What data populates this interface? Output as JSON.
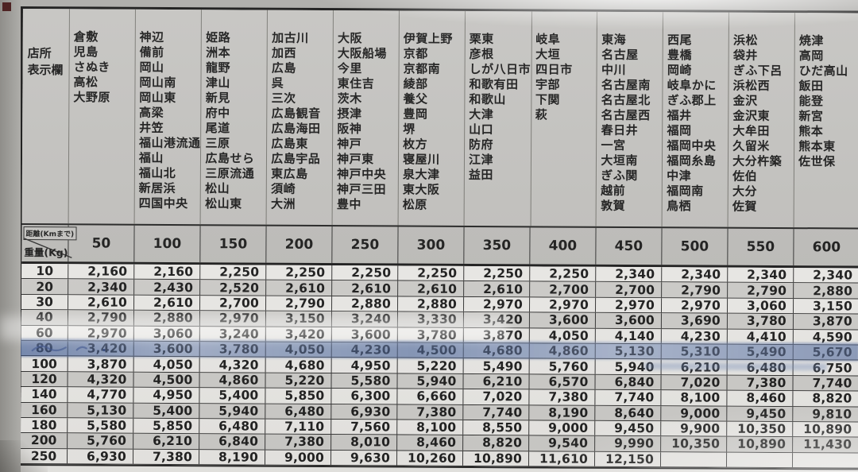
{
  "table": {
    "header": {
      "office_label_line1": "店所",
      "office_label_line2": "表示欄"
    },
    "axis": {
      "distance_label": "距離(Kmまで)",
      "weight_label": "重量(Kg)"
    },
    "highlight_color": "#5a74a8",
    "columns": [
      {
        "distance": "50",
        "cities": [
          "倉敷",
          "児島",
          "さぬき",
          "高松",
          "大野原"
        ]
      },
      {
        "distance": "100",
        "cities": [
          "神辺",
          "備前",
          "岡山",
          "岡山南",
          "岡山東",
          "高梁",
          "井笠",
          "福山港流通",
          "福山",
          "福山北",
          "新居浜",
          "四国中央"
        ]
      },
      {
        "distance": "150",
        "cities": [
          "姫路",
          "洲本",
          "龍野",
          "津山",
          "新見",
          "府中",
          "尾道",
          "三原",
          "広島せら",
          "三原流通",
          "松山",
          "松山東"
        ]
      },
      {
        "distance": "200",
        "cities": [
          "加古川",
          "加西",
          "広島",
          "呉",
          "三次",
          "広島観音",
          "広島海田",
          "広島東",
          "広島宇品",
          "東広島",
          "須崎",
          "大洲"
        ]
      },
      {
        "distance": "250",
        "cities": [
          "大阪",
          "大阪船場",
          "今里",
          "東住吉",
          "茨木",
          "摂津",
          "阪神",
          "神戸",
          "神戸東",
          "神戸中央",
          "神戸三田",
          "豊中"
        ]
      },
      {
        "distance": "300",
        "cities": [
          "伊賀上野",
          "京都",
          "京都南",
          "綾部",
          "養父",
          "豊岡",
          "堺",
          "枚方",
          "寝屋川",
          "泉大津",
          "東大阪",
          "松原"
        ]
      },
      {
        "distance": "350",
        "cities": [
          "栗東",
          "彦根",
          "しが八日市",
          "和歌有田",
          "和歌山",
          "大津",
          "山口",
          "防府",
          "江津",
          "益田"
        ]
      },
      {
        "distance": "400",
        "cities": [
          "岐阜",
          "大垣",
          "四日市",
          "宇部",
          "下関",
          "萩"
        ]
      },
      {
        "distance": "450",
        "cities": [
          "東海",
          "名古屋",
          "中川",
          "名古屋南",
          "名古屋北",
          "名古屋西",
          "春日井",
          "一宮",
          "大垣南",
          "ぎふ関",
          "越前",
          "敦賀"
        ]
      },
      {
        "distance": "500",
        "cities": [
          "西尾",
          "豊橋",
          "岡崎",
          "岐阜かに",
          "ぎふ郡上",
          "福井",
          "福岡",
          "福岡中央",
          "福岡糸島",
          "中津",
          "福岡南",
          "鳥栖"
        ]
      },
      {
        "distance": "550",
        "cities": [
          "浜松",
          "袋井",
          "ぎふ下呂",
          "浜松西",
          "金沢",
          "金沢東",
          "大牟田",
          "久留米",
          "大分杵築",
          "佐伯",
          "大分",
          "佐賀"
        ]
      },
      {
        "distance": "600",
        "cities": [
          "焼津",
          "高岡",
          "ひだ高山",
          "飯田",
          "能登",
          "新宮",
          "熊本",
          "熊本東",
          "佐世保"
        ]
      }
    ],
    "rows": [
      {
        "weight": "10",
        "rates": [
          "2,160",
          "2,160",
          "2,250",
          "2,250",
          "2,250",
          "2,250",
          "2,250",
          "2,250",
          "2,340",
          "2,340",
          "2,340",
          "2,340"
        ]
      },
      {
        "weight": "20",
        "rates": [
          "2,340",
          "2,430",
          "2,520",
          "2,610",
          "2,610",
          "2,610",
          "2,610",
          "2,700",
          "2,700",
          "2,790",
          "2,790",
          "2,880"
        ]
      },
      {
        "weight": "30",
        "rates": [
          "2,610",
          "2,610",
          "2,700",
          "2,790",
          "2,880",
          "2,880",
          "2,970",
          "2,970",
          "2,970",
          "2,970",
          "3,060",
          "3,150"
        ]
      },
      {
        "weight": "40",
        "rates": [
          "2,790",
          "2,880",
          "2,970",
          "3,150",
          "3,240",
          "3,330",
          "3,420",
          "3,600",
          "3,600",
          "3,690",
          "3,780",
          "3,870"
        ]
      },
      {
        "weight": "60",
        "rates": [
          "2,970",
          "3,060",
          "3,240",
          "3,420",
          "3,600",
          "3,780",
          "3,870",
          "4,050",
          "4,140",
          "4,230",
          "4,410",
          "4,590"
        ]
      },
      {
        "weight": "80",
        "highlighted": true,
        "rates": [
          "3,420",
          "3,600",
          "3,780",
          "4,050",
          "4,230",
          "4,500",
          "4,680",
          "4,860",
          "5,130",
          "5,310",
          "5,490",
          "5,670"
        ]
      },
      {
        "weight": "100",
        "rates": [
          "3,870",
          "4,050",
          "4,320",
          "4,680",
          "4,950",
          "5,220",
          "5,490",
          "5,760",
          "5,940",
          "6,210",
          "6,480",
          "6,750"
        ]
      },
      {
        "weight": "120",
        "rates": [
          "4,320",
          "4,500",
          "4,860",
          "5,220",
          "5,580",
          "5,940",
          "6,210",
          "6,570",
          "6,840",
          "7,020",
          "7,380",
          "7,740"
        ]
      },
      {
        "weight": "140",
        "rates": [
          "4,770",
          "4,950",
          "5,400",
          "5,850",
          "6,300",
          "6,660",
          "7,020",
          "7,380",
          "7,740",
          "8,100",
          "8,460",
          "8,820"
        ]
      },
      {
        "weight": "160",
        "rates": [
          "5,130",
          "5,400",
          "5,940",
          "6,480",
          "6,930",
          "7,380",
          "7,740",
          "8,190",
          "8,640",
          "9,000",
          "9,450",
          "9,810"
        ]
      },
      {
        "weight": "180",
        "rates": [
          "5,580",
          "5,850",
          "6,480",
          "7,110",
          "7,560",
          "8,100",
          "8,550",
          "9,000",
          "9,450",
          "9,900",
          "10,350",
          "10,890"
        ]
      },
      {
        "weight": "200",
        "rates": [
          "5,760",
          "6,210",
          "6,840",
          "7,380",
          "8,010",
          "8,460",
          "8,820",
          "9,540",
          "9,990",
          "10,350",
          "10,890",
          "11,430"
        ]
      },
      {
        "weight": "250",
        "rates": [
          "6,930",
          "7,380",
          "8,190",
          "9,000",
          "9,630",
          "10,260",
          "10,890",
          "11,610",
          "12,150",
          "",
          "",
          ""
        ]
      }
    ]
  }
}
